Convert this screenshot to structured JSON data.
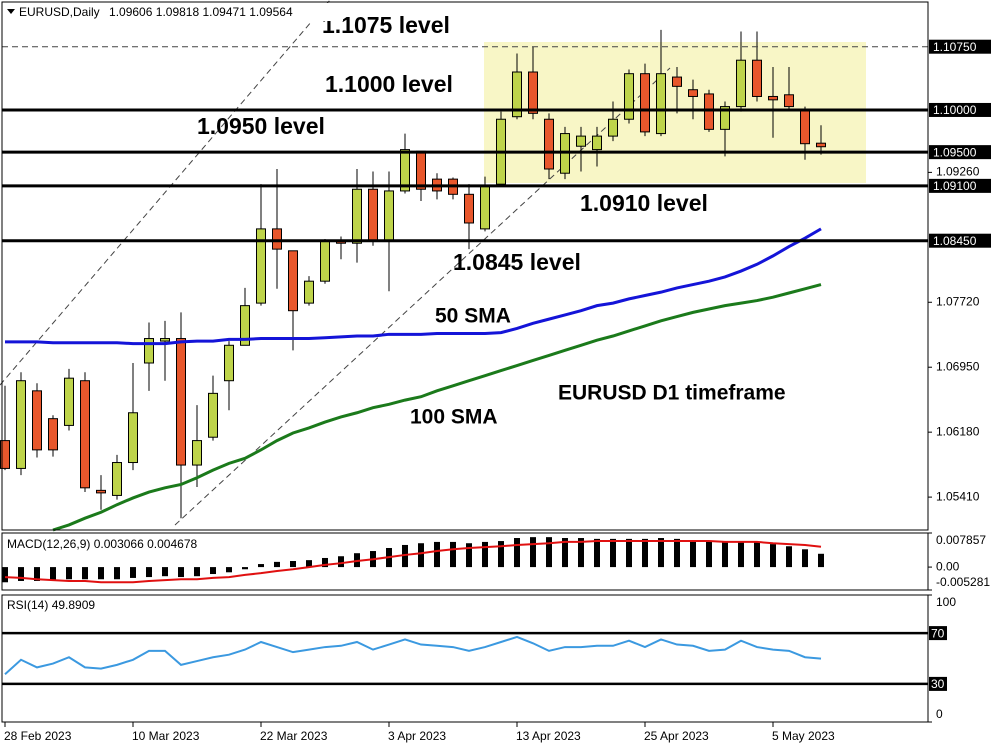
{
  "chart_data": [
    {
      "type": "candlestick",
      "symbol": "EURUSD,Daily",
      "categories": [
        "28 Feb 2023",
        null,
        null,
        null,
        null,
        null,
        null,
        null,
        "10 Mar 2023",
        null,
        null,
        null,
        null,
        null,
        null,
        null,
        "22 Mar 2023",
        null,
        null,
        null,
        null,
        null,
        null,
        null,
        "3 Apr 2023",
        null,
        null,
        null,
        null,
        null,
        null,
        null,
        "13 Apr 2023",
        null,
        null,
        null,
        null,
        null,
        null,
        null,
        "25 Apr 2023",
        null,
        null,
        null,
        null,
        null,
        null,
        null,
        "5 May 2023",
        null,
        null,
        null
      ],
      "open": [
        1.0608,
        1.0575,
        1.0667,
        1.0634,
        1.0626,
        1.0679,
        1.0549,
        1.0543,
        1.0582,
        1.07,
        1.0726,
        1.0729,
        1.0579,
        1.0612,
        1.0679,
        1.0721,
        1.0771,
        1.0859,
        1.0833,
        1.0771,
        1.0797,
        1.0845,
        1.0842,
        1.0906,
        1.0845,
        1.0904,
        1.0951,
        1.0918,
        1.0918,
        1.09,
        1.0859,
        1.0912,
        1.0992,
        1.1045,
        1.0989,
        1.0925,
        1.0957,
        1.0953,
        1.0969,
        1.0989,
        1.1043,
        1.0972,
        1.1039,
        1.1024,
        1.1019,
        1.0977,
        1.1004,
        1.1059,
        1.1016,
        1.1018,
        1.1,
        1.09606
      ],
      "high": [
        1.0673,
        1.0689,
        1.0676,
        1.0638,
        1.0693,
        1.0689,
        1.0567,
        1.0591,
        1.07,
        1.0748,
        1.075,
        1.076,
        1.065,
        1.0685,
        1.0726,
        1.0789,
        1.0912,
        1.093,
        1.0833,
        1.0803,
        1.0847,
        1.085,
        1.093,
        1.0927,
        1.0927,
        1.0972,
        1.0951,
        1.0925,
        1.092,
        1.0912,
        1.0921,
        1.0998,
        1.1067,
        1.1075,
        1.0996,
        1.098,
        1.098,
        1.098,
        1.101,
        1.1048,
        1.1055,
        1.1095,
        1.1051,
        1.1036,
        1.1024,
        1.101,
        1.1093,
        1.1093,
        1.1051,
        1.1051,
        1.1004,
        1.09818
      ],
      "low": [
        1.0573,
        1.0567,
        1.0588,
        1.0589,
        1.062,
        1.0547,
        1.0526,
        1.0538,
        1.0573,
        1.0667,
        1.0679,
        1.0516,
        1.0553,
        1.0608,
        1.0644,
        1.0721,
        1.0768,
        1.0788,
        1.0715,
        1.0768,
        1.0794,
        1.0823,
        1.0819,
        1.0839,
        1.0785,
        1.0901,
        1.0892,
        1.0894,
        1.0894,
        1.0835,
        1.0856,
        1.091,
        1.0989,
        1.0989,
        1.0918,
        1.0918,
        1.0927,
        1.0933,
        1.0963,
        1.0984,
        1.0969,
        1.0969,
        1.0996,
        1.0989,
        1.0974,
        1.0945,
        1.0998,
        1.101,
        1.0967,
        1.1,
        1.0941,
        1.09471
      ],
      "close": [
        1.0575,
        1.0679,
        1.0597,
        1.0597,
        1.0682,
        1.0552,
        1.0546,
        1.0582,
        1.0641,
        1.0729,
        1.0729,
        1.0579,
        1.0608,
        1.0664,
        1.0721,
        1.0768,
        1.0859,
        1.0835,
        1.0762,
        1.0797,
        1.0845,
        1.0842,
        1.0906,
        1.0845,
        1.0904,
        1.0953,
        1.0906,
        1.0904,
        1.09,
        1.0866,
        1.091,
        1.0989,
        1.1045,
        1.0996,
        1.093,
        1.0972,
        1.0969,
        1.0969,
        1.0989,
        1.1043,
        1.0974,
        1.1043,
        1.1028,
        1.1016,
        1.0977,
        1.1004,
        1.1059,
        1.1016,
        1.1012,
        1.1004,
        1.096,
        1.09564
      ],
      "up_color": "#bed44a",
      "down_color": "#e8572c",
      "lines": [
        {
          "name": "50 SMA",
          "color": "#1414d8",
          "values": [
            1.0725,
            1.0725,
            1.0725,
            1.0724,
            1.0724,
            1.0724,
            1.0724,
            1.0724,
            1.0723,
            1.0723,
            1.0723,
            1.0725,
            1.0726,
            1.0726,
            1.0728,
            1.0728,
            1.0729,
            1.0729,
            1.0729,
            1.0729,
            1.073,
            1.0731,
            1.0732,
            1.0732,
            1.0734,
            1.0734,
            1.0734,
            1.0735,
            1.0735,
            1.0735,
            1.0735,
            1.0736,
            1.0741,
            1.0747,
            1.0752,
            1.0757,
            1.0762,
            1.0768,
            1.0771,
            1.0776,
            1.078,
            1.0784,
            1.0789,
            1.0793,
            1.0797,
            1.0802,
            1.0809,
            1.0817,
            1.0827,
            1.0838,
            1.0848,
            1.0859
          ]
        },
        {
          "name": "100 SMA",
          "color": "#1b7a1b",
          "values": [
            null,
            null,
            null,
            1.0502,
            1.0508,
            1.0516,
            1.0523,
            1.0532,
            1.054,
            1.0547,
            1.0552,
            1.0556,
            1.0564,
            1.0573,
            1.0581,
            1.0587,
            1.0597,
            1.0608,
            1.0617,
            1.0623,
            1.063,
            1.0636,
            1.0641,
            1.0647,
            1.0651,
            1.0656,
            1.066,
            1.0667,
            1.0673,
            1.0679,
            1.0685,
            1.0691,
            1.0697,
            1.0703,
            1.0709,
            1.0715,
            1.0721,
            1.0727,
            1.0732,
            1.0738,
            1.0744,
            1.075,
            1.0755,
            1.076,
            1.0764,
            1.0768,
            1.0771,
            1.0774,
            1.0778,
            1.0783,
            1.0788,
            1.0793
          ]
        }
      ],
      "levels": [
        {
          "value": 1.1075,
          "label": "1.10750",
          "annotation": "1.1075 level",
          "dashed": true
        },
        {
          "value": 1.1,
          "label": "1.10000",
          "annotation": "1.1000 level",
          "dashed": false
        },
        {
          "value": 1.095,
          "label": "1.09500",
          "annotation": "1.0950 level",
          "dashed": false
        },
        {
          "value": 1.091,
          "label": "1.09100",
          "annotation": "1.0910 level",
          "dashed": false
        },
        {
          "value": 1.0845,
          "label": "1.08450",
          "annotation": "1.0845 level",
          "dashed": false
        }
      ],
      "annotation": "EURUSD D1 timeframe",
      "ylim": [
        1.0502,
        1.1128
      ],
      "yticks": [
        {
          "value": 1.0926,
          "label": "1.09260"
        },
        {
          "value": 1.0772,
          "label": "1.07720"
        },
        {
          "value": 1.0695,
          "label": "1.06950"
        },
        {
          "value": 1.0618,
          "label": "1.06180"
        },
        {
          "value": 1.0541,
          "label": "1.05410"
        }
      ]
    },
    {
      "type": "macd",
      "title": "MACD(12,26,9)",
      "histogram": {
        "color": "#000000",
        "values": [
          -0.0035,
          -0.0032,
          -0.0032,
          -0.003,
          -0.0028,
          -0.0028,
          -0.0028,
          -0.0028,
          -0.0025,
          -0.0023,
          -0.0021,
          -0.0023,
          -0.0021,
          -0.0016,
          -0.0012,
          -0.0005,
          0.0007,
          0.0012,
          0.0014,
          0.0016,
          0.0021,
          0.0025,
          0.0032,
          0.0037,
          0.0044,
          0.0051,
          0.0055,
          0.0058,
          0.0058,
          0.0055,
          0.0058,
          0.006,
          0.0067,
          0.0069,
          0.0069,
          0.0067,
          0.0067,
          0.0065,
          0.0065,
          0.0065,
          0.0065,
          0.0067,
          0.0065,
          0.0062,
          0.006,
          0.0058,
          0.006,
          0.0058,
          0.0053,
          0.0048,
          0.0041,
          0.003066
        ]
      },
      "signal": {
        "color": "#e01010",
        "values": [
          -0.0023,
          -0.0025,
          -0.0028,
          -0.003,
          -0.0032,
          -0.0032,
          -0.0035,
          -0.0035,
          -0.0035,
          -0.0032,
          -0.003,
          -0.0028,
          -0.0028,
          -0.0025,
          -0.0023,
          -0.0018,
          -0.0014,
          -0.0009,
          -0.0005,
          0,
          0.0005,
          0.0009,
          0.0014,
          0.0018,
          0.0023,
          0.0028,
          0.0032,
          0.0037,
          0.0041,
          0.0044,
          0.0046,
          0.0048,
          0.0051,
          0.0053,
          0.0055,
          0.0058,
          0.0058,
          0.006,
          0.006,
          0.006,
          0.006,
          0.006,
          0.006,
          0.006,
          0.006,
          0.0058,
          0.0058,
          0.0058,
          0.0055,
          0.0053,
          0.0051,
          0.004678
        ]
      },
      "ylim": [
        -0.005281,
        0.007857
      ],
      "yticks": [
        0.007857,
        {
          "value": 0,
          "label": "0.00"
        },
        -0.005281
      ]
    },
    {
      "type": "line",
      "title": "RSI(14)",
      "color": "#3b99e0",
      "values": [
        37.6,
        49,
        43,
        46,
        51,
        43,
        42,
        45,
        49,
        56,
        56,
        45,
        48,
        51,
        53,
        57,
        63,
        59,
        55,
        57,
        59,
        60,
        63,
        57,
        61,
        65,
        61,
        60,
        59,
        56,
        59,
        63,
        67,
        62,
        56,
        59,
        59,
        60,
        60,
        64,
        59,
        65,
        61,
        60,
        56,
        57,
        64,
        59,
        57,
        56,
        51,
        49.8909
      ],
      "levels": [
        70,
        30
      ],
      "ylim": [
        0,
        100
      ],
      "yticks": [
        100,
        0
      ]
    }
  ]
}
